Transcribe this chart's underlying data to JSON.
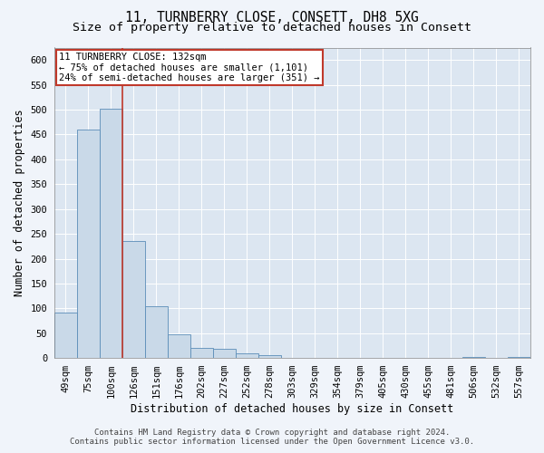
{
  "title_line1": "11, TURNBERRY CLOSE, CONSETT, DH8 5XG",
  "title_line2": "Size of property relative to detached houses in Consett",
  "bar_labels": [
    "49sqm",
    "75sqm",
    "100sqm",
    "126sqm",
    "151sqm",
    "176sqm",
    "202sqm",
    "227sqm",
    "252sqm",
    "278sqm",
    "303sqm",
    "329sqm",
    "354sqm",
    "379sqm",
    "405sqm",
    "430sqm",
    "455sqm",
    "481sqm",
    "506sqm",
    "532sqm",
    "557sqm"
  ],
  "bar_values": [
    91,
    460,
    502,
    236,
    104,
    47,
    20,
    19,
    10,
    6,
    0,
    0,
    0,
    0,
    0,
    0,
    0,
    0,
    2,
    0,
    2
  ],
  "bar_color": "#c9d9e8",
  "bar_edge_color": "#5b8db8",
  "bar_width": 1.0,
  "vline_x": 2.5,
  "vline_color": "#c0392b",
  "annotation_text": "11 TURNBERRY CLOSE: 132sqm\n← 75% of detached houses are smaller (1,101)\n24% of semi-detached houses are larger (351) →",
  "annotation_box_color": "#c0392b",
  "xlabel": "Distribution of detached houses by size in Consett",
  "ylabel": "Number of detached properties",
  "ylim": [
    0,
    625
  ],
  "yticks": [
    0,
    50,
    100,
    150,
    200,
    250,
    300,
    350,
    400,
    450,
    500,
    550,
    600
  ],
  "background_color": "#f0f4fa",
  "plot_bg_color": "#dce6f1",
  "grid_color": "#ffffff",
  "footer_line1": "Contains HM Land Registry data © Crown copyright and database right 2024.",
  "footer_line2": "Contains public sector information licensed under the Open Government Licence v3.0.",
  "title_fontsize": 10.5,
  "subtitle_fontsize": 9.5,
  "xlabel_fontsize": 8.5,
  "ylabel_fontsize": 8.5,
  "tick_fontsize": 7.5,
  "annotation_fontsize": 7.5,
  "footer_fontsize": 6.5
}
